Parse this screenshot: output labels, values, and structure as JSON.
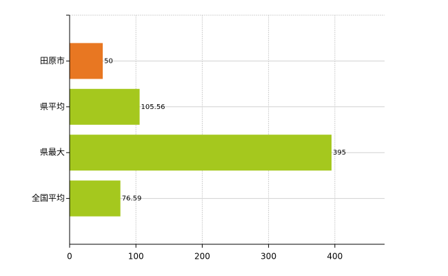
{
  "chart_data": {
    "type": "hbar",
    "categories": [
      "田原市",
      "県平均",
      "県最大",
      "全国平均"
    ],
    "values": [
      50,
      105.56,
      395,
      76.59
    ],
    "colors": [
      "#e87722",
      "#a5c81e",
      "#a5c81e",
      "#a5c81e"
    ],
    "xlim": [
      0,
      475
    ],
    "xticks": [
      0,
      100,
      200,
      300,
      400
    ],
    "grid": true
  }
}
